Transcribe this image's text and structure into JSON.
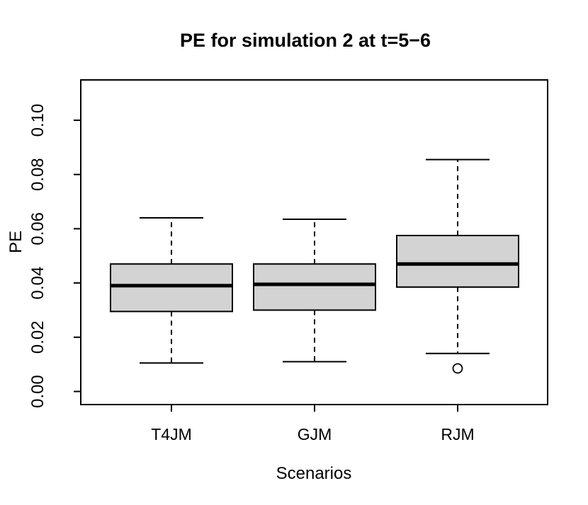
{
  "chart_data": {
    "type": "boxplot",
    "title": "PE for simulation 2 at t=5−6",
    "xlabel": "Scenarios",
    "ylabel": "PE",
    "ylim": [
      -0.005,
      0.115
    ],
    "grid": false,
    "legend_position": "none",
    "yticks": [
      {
        "value": 0.0,
        "label": "0.00"
      },
      {
        "value": 0.02,
        "label": "0.02"
      },
      {
        "value": 0.04,
        "label": "0.04"
      },
      {
        "value": 0.06,
        "label": "0.06"
      },
      {
        "value": 0.08,
        "label": "0.08"
      },
      {
        "value": 0.1,
        "label": "0.10"
      }
    ],
    "categories": [
      "T4JM",
      "GJM",
      "RJM"
    ],
    "series": [
      {
        "name": "T4JM",
        "whisker_low": 0.0105,
        "q1": 0.0295,
        "median": 0.039,
        "q3": 0.047,
        "whisker_high": 0.064,
        "outliers": []
      },
      {
        "name": "GJM",
        "whisker_low": 0.011,
        "q1": 0.03,
        "median": 0.0395,
        "q3": 0.047,
        "whisker_high": 0.0635,
        "outliers": []
      },
      {
        "name": "RJM",
        "whisker_low": 0.014,
        "q1": 0.0385,
        "median": 0.047,
        "q3": 0.0575,
        "whisker_high": 0.0855,
        "outliers": [
          0.0085
        ]
      }
    ],
    "colors": {
      "box_fill": "#d3d3d3",
      "line": "#000000",
      "background": "#ffffff"
    }
  }
}
